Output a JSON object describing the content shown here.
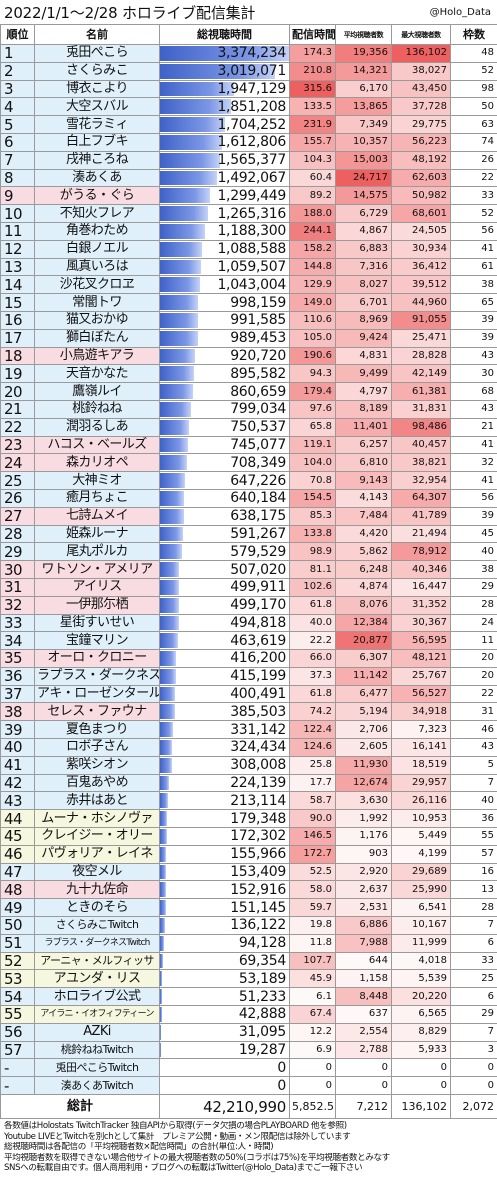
{
  "header": {
    "title": "2022/1/1～2/28 ホロライブ配信集計",
    "handle": "@Holo_Data"
  },
  "columns": {
    "rank": "順位",
    "name": "名前",
    "watch": "総視聴時間",
    "hours": "配信時間",
    "avg": "平均視聴者数",
    "max": "最大視聴者数",
    "frames": "枠数"
  },
  "colors": {
    "watch_bar": "#3f62c8",
    "hours_red": "#f06060",
    "viewers_red": "#f06060",
    "row_blue": "#dff0fb",
    "row_pink": "#f9dce2",
    "row_yellow": "#f6f7df"
  },
  "rows": [
    {
      "rank": "1",
      "name": "兎田ぺこら",
      "watch": "3,374,234",
      "watch_v": 3374234,
      "hours": "174.3",
      "hours_v": 174.3,
      "avg": "19,356",
      "avg_v": 19356,
      "max": "136,102",
      "max_v": 136102,
      "frames": "48",
      "bg": "b"
    },
    {
      "rank": "2",
      "name": "さくらみこ",
      "watch": "3,019,071",
      "watch_v": 3019071,
      "hours": "210.8",
      "hours_v": 210.8,
      "avg": "14,321",
      "avg_v": 14321,
      "max": "38,027",
      "max_v": 38027,
      "frames": "52",
      "bg": "b"
    },
    {
      "rank": "3",
      "name": "博衣こより",
      "watch": "1,947,129",
      "watch_v": 1947129,
      "hours": "315.6",
      "hours_v": 315.6,
      "avg": "6,170",
      "avg_v": 6170,
      "max": "43,450",
      "max_v": 43450,
      "frames": "98",
      "bg": "b"
    },
    {
      "rank": "4",
      "name": "大空スバル",
      "watch": "1,851,208",
      "watch_v": 1851208,
      "hours": "133.5",
      "hours_v": 133.5,
      "avg": "13,865",
      "avg_v": 13865,
      "max": "37,728",
      "max_v": 37728,
      "frames": "50",
      "bg": "b"
    },
    {
      "rank": "5",
      "name": "雪花ラミィ",
      "watch": "1,704,252",
      "watch_v": 1704252,
      "hours": "231.9",
      "hours_v": 231.9,
      "avg": "7,349",
      "avg_v": 7349,
      "max": "29,775",
      "max_v": 29775,
      "frames": "63",
      "bg": "b"
    },
    {
      "rank": "6",
      "name": "白上フブキ",
      "watch": "1,612,806",
      "watch_v": 1612806,
      "hours": "155.7",
      "hours_v": 155.7,
      "avg": "10,357",
      "avg_v": 10357,
      "max": "56,223",
      "max_v": 56223,
      "frames": "74",
      "bg": "b"
    },
    {
      "rank": "7",
      "name": "戌神ころね",
      "watch": "1,565,377",
      "watch_v": 1565377,
      "hours": "104.3",
      "hours_v": 104.3,
      "avg": "15,003",
      "avg_v": 15003,
      "max": "48,192",
      "max_v": 48192,
      "frames": "26",
      "bg": "b"
    },
    {
      "rank": "8",
      "name": "湊あくあ",
      "watch": "1,492,067",
      "watch_v": 1492067,
      "hours": "60.4",
      "hours_v": 60.4,
      "avg": "24,717",
      "avg_v": 24717,
      "max": "62,603",
      "max_v": 62603,
      "frames": "22",
      "bg": "b"
    },
    {
      "rank": "9",
      "name": "がうる・ぐら",
      "watch": "1,299,449",
      "watch_v": 1299449,
      "hours": "89.2",
      "hours_v": 89.2,
      "avg": "14,575",
      "avg_v": 14575,
      "max": "50,982",
      "max_v": 50982,
      "frames": "33",
      "bg": "hl"
    },
    {
      "rank": "10",
      "name": "不知火フレア",
      "watch": "1,265,316",
      "watch_v": 1265316,
      "hours": "188.0",
      "hours_v": 188.0,
      "avg": "6,729",
      "avg_v": 6729,
      "max": "68,601",
      "max_v": 68601,
      "frames": "52",
      "bg": "b"
    },
    {
      "rank": "11",
      "name": "角巻わため",
      "watch": "1,188,300",
      "watch_v": 1188300,
      "hours": "244.1",
      "hours_v": 244.1,
      "avg": "4,867",
      "avg_v": 4867,
      "max": "24,505",
      "max_v": 24505,
      "frames": "56",
      "bg": "b"
    },
    {
      "rank": "12",
      "name": "白銀ノエル",
      "watch": "1,088,588",
      "watch_v": 1088588,
      "hours": "158.2",
      "hours_v": 158.2,
      "avg": "6,883",
      "avg_v": 6883,
      "max": "30,934",
      "max_v": 30934,
      "frames": "41",
      "bg": "b"
    },
    {
      "rank": "13",
      "name": "風真いろは",
      "watch": "1,059,507",
      "watch_v": 1059507,
      "hours": "144.8",
      "hours_v": 144.8,
      "avg": "7,316",
      "avg_v": 7316,
      "max": "36,412",
      "max_v": 36412,
      "frames": "61",
      "bg": "b"
    },
    {
      "rank": "14",
      "name": "沙花叉クロヱ",
      "watch": "1,043,004",
      "watch_v": 1043004,
      "hours": "129.9",
      "hours_v": 129.9,
      "avg": "8,027",
      "avg_v": 8027,
      "max": "39,512",
      "max_v": 39512,
      "frames": "38",
      "bg": "b"
    },
    {
      "rank": "15",
      "name": "常闇トワ",
      "watch": "998,159",
      "watch_v": 998159,
      "hours": "149.0",
      "hours_v": 149.0,
      "avg": "6,701",
      "avg_v": 6701,
      "max": "44,960",
      "max_v": 44960,
      "frames": "65",
      "bg": "b"
    },
    {
      "rank": "16",
      "name": "猫又おかゆ",
      "watch": "991,585",
      "watch_v": 991585,
      "hours": "110.6",
      "hours_v": 110.6,
      "avg": "8,969",
      "avg_v": 8969,
      "max": "91,055",
      "max_v": 91055,
      "frames": "39",
      "bg": "b"
    },
    {
      "rank": "17",
      "name": "獅白ぼたん",
      "watch": "989,453",
      "watch_v": 989453,
      "hours": "105.0",
      "hours_v": 105.0,
      "avg": "9,424",
      "avg_v": 9424,
      "max": "25,471",
      "max_v": 25471,
      "frames": "39",
      "bg": "b"
    },
    {
      "rank": "18",
      "name": "小鳥遊キアラ",
      "watch": "920,720",
      "watch_v": 920720,
      "hours": "190.6",
      "hours_v": 190.6,
      "avg": "4,831",
      "avg_v": 4831,
      "max": "28,828",
      "max_v": 28828,
      "frames": "43",
      "bg": "hl"
    },
    {
      "rank": "19",
      "name": "天音かなた",
      "watch": "895,582",
      "watch_v": 895582,
      "hours": "94.3",
      "hours_v": 94.3,
      "avg": "9,499",
      "avg_v": 9499,
      "max": "42,149",
      "max_v": 42149,
      "frames": "30",
      "bg": "b"
    },
    {
      "rank": "20",
      "name": "鷹嶺ルイ",
      "watch": "860,659",
      "watch_v": 860659,
      "hours": "179.4",
      "hours_v": 179.4,
      "avg": "4,797",
      "avg_v": 4797,
      "max": "61,381",
      "max_v": 61381,
      "frames": "68",
      "bg": "b"
    },
    {
      "rank": "21",
      "name": "桃鈴ねね",
      "watch": "799,034",
      "watch_v": 799034,
      "hours": "97.6",
      "hours_v": 97.6,
      "avg": "8,189",
      "avg_v": 8189,
      "max": "31,831",
      "max_v": 31831,
      "frames": "43",
      "bg": "b"
    },
    {
      "rank": "22",
      "name": "潤羽るしあ",
      "watch": "750,537",
      "watch_v": 750537,
      "hours": "65.8",
      "hours_v": 65.8,
      "avg": "11,401",
      "avg_v": 11401,
      "max": "98,486",
      "max_v": 98486,
      "frames": "21",
      "bg": "b"
    },
    {
      "rank": "23",
      "name": "ハコス・ベールズ",
      "watch": "745,077",
      "watch_v": 745077,
      "hours": "119.1",
      "hours_v": 119.1,
      "avg": "6,257",
      "avg_v": 6257,
      "max": "40,457",
      "max_v": 40457,
      "frames": "41",
      "bg": "hl"
    },
    {
      "rank": "24",
      "name": "森カリオペ",
      "watch": "708,349",
      "watch_v": 708349,
      "hours": "104.0",
      "hours_v": 104.0,
      "avg": "6,810",
      "avg_v": 6810,
      "max": "38,821",
      "max_v": 38821,
      "frames": "32",
      "bg": "hl"
    },
    {
      "rank": "25",
      "name": "大神ミオ",
      "watch": "647,226",
      "watch_v": 647226,
      "hours": "70.8",
      "hours_v": 70.8,
      "avg": "9,143",
      "avg_v": 9143,
      "max": "32,954",
      "max_v": 32954,
      "frames": "41",
      "bg": "b"
    },
    {
      "rank": "26",
      "name": "癒月ちょこ",
      "watch": "640,184",
      "watch_v": 640184,
      "hours": "154.5",
      "hours_v": 154.5,
      "avg": "4,143",
      "avg_v": 4143,
      "max": "64,307",
      "max_v": 64307,
      "frames": "56",
      "bg": "b"
    },
    {
      "rank": "27",
      "name": "七詩ムメイ",
      "watch": "638,175",
      "watch_v": 638175,
      "hours": "85.3",
      "hours_v": 85.3,
      "avg": "7,484",
      "avg_v": 7484,
      "max": "41,789",
      "max_v": 41789,
      "frames": "39",
      "bg": "hl"
    },
    {
      "rank": "28",
      "name": "姫森ルーナ",
      "watch": "591,267",
      "watch_v": 591267,
      "hours": "133.8",
      "hours_v": 133.8,
      "avg": "4,420",
      "avg_v": 4420,
      "max": "21,494",
      "max_v": 21494,
      "frames": "45",
      "bg": "b"
    },
    {
      "rank": "29",
      "name": "尾丸ポルカ",
      "watch": "579,529",
      "watch_v": 579529,
      "hours": "98.9",
      "hours_v": 98.9,
      "avg": "5,862",
      "avg_v": 5862,
      "max": "78,912",
      "max_v": 78912,
      "frames": "40",
      "bg": "b"
    },
    {
      "rank": "30",
      "name": "ワトソン・アメリア",
      "watch": "507,020",
      "watch_v": 507020,
      "hours": "81.1",
      "hours_v": 81.1,
      "avg": "6,248",
      "avg_v": 6248,
      "max": "40,346",
      "max_v": 40346,
      "frames": "38",
      "bg": "hl"
    },
    {
      "rank": "31",
      "name": "アイリス",
      "watch": "499,911",
      "watch_v": 499911,
      "hours": "102.6",
      "hours_v": 102.6,
      "avg": "4,874",
      "avg_v": 4874,
      "max": "16,447",
      "max_v": 16447,
      "frames": "29",
      "bg": "hl"
    },
    {
      "rank": "32",
      "name": "一伊那尓栖",
      "watch": "499,170",
      "watch_v": 499170,
      "hours": "61.8",
      "hours_v": 61.8,
      "avg": "8,076",
      "avg_v": 8076,
      "max": "31,352",
      "max_v": 31352,
      "frames": "28",
      "bg": "hl"
    },
    {
      "rank": "33",
      "name": "星街すいせい",
      "watch": "494,818",
      "watch_v": 494818,
      "hours": "40.0",
      "hours_v": 40.0,
      "avg": "12,384",
      "avg_v": 12384,
      "max": "30,367",
      "max_v": 30367,
      "frames": "24",
      "bg": "b"
    },
    {
      "rank": "34",
      "name": "宝鐘マリン",
      "watch": "463,619",
      "watch_v": 463619,
      "hours": "22.2",
      "hours_v": 22.2,
      "avg": "20,877",
      "avg_v": 20877,
      "max": "56,595",
      "max_v": 56595,
      "frames": "11",
      "bg": "b"
    },
    {
      "rank": "35",
      "name": "オーロ・クロニー",
      "watch": "416,200",
      "watch_v": 416200,
      "hours": "66.0",
      "hours_v": 66.0,
      "avg": "6,307",
      "avg_v": 6307,
      "max": "48,121",
      "max_v": 48121,
      "frames": "20",
      "bg": "hl"
    },
    {
      "rank": "36",
      "name": "ラプラス・ダークネス",
      "watch": "415,199",
      "watch_v": 415199,
      "hours": "37.3",
      "hours_v": 37.3,
      "avg": "11,142",
      "avg_v": 11142,
      "max": "25,767",
      "max_v": 25767,
      "frames": "20",
      "bg": "b"
    },
    {
      "rank": "37",
      "name": "アキ・ローゼンタール",
      "watch": "400,491",
      "watch_v": 400491,
      "hours": "61.8",
      "hours_v": 61.8,
      "avg": "6,477",
      "avg_v": 6477,
      "max": "56,527",
      "max_v": 56527,
      "frames": "22",
      "bg": "b"
    },
    {
      "rank": "38",
      "name": "セレス・ファウナ",
      "watch": "385,503",
      "watch_v": 385503,
      "hours": "74.2",
      "hours_v": 74.2,
      "avg": "5,194",
      "avg_v": 5194,
      "max": "34,918",
      "max_v": 34918,
      "frames": "31",
      "bg": "hl"
    },
    {
      "rank": "39",
      "name": "夏色まつり",
      "watch": "331,142",
      "watch_v": 331142,
      "hours": "122.4",
      "hours_v": 122.4,
      "avg": "2,706",
      "avg_v": 2706,
      "max": "7,323",
      "max_v": 7323,
      "frames": "46",
      "bg": "b"
    },
    {
      "rank": "40",
      "name": "ロボ子さん",
      "watch": "324,434",
      "watch_v": 324434,
      "hours": "124.6",
      "hours_v": 124.6,
      "avg": "2,605",
      "avg_v": 2605,
      "max": "16,141",
      "max_v": 16141,
      "frames": "43",
      "bg": "b"
    },
    {
      "rank": "41",
      "name": "紫咲シオン",
      "watch": "308,008",
      "watch_v": 308008,
      "hours": "25.8",
      "hours_v": 25.8,
      "avg": "11,930",
      "avg_v": 11930,
      "max": "18,519",
      "max_v": 18519,
      "frames": "5",
      "bg": "b"
    },
    {
      "rank": "42",
      "name": "百鬼あやめ",
      "watch": "224,139",
      "watch_v": 224139,
      "hours": "17.7",
      "hours_v": 17.7,
      "avg": "12,674",
      "avg_v": 12674,
      "max": "29,957",
      "max_v": 29957,
      "frames": "7",
      "bg": "b"
    },
    {
      "rank": "43",
      "name": "赤井はあと",
      "watch": "213,114",
      "watch_v": 213114,
      "hours": "58.7",
      "hours_v": 58.7,
      "avg": "3,630",
      "avg_v": 3630,
      "max": "26,116",
      "max_v": 26116,
      "frames": "40",
      "bg": "b"
    },
    {
      "rank": "44",
      "name": "ムーナ・ホシノヴァ",
      "watch": "179,348",
      "watch_v": 179348,
      "hours": "90.0",
      "hours_v": 90.0,
      "avg": "1,992",
      "avg_v": 1992,
      "max": "10,953",
      "max_v": 10953,
      "frames": "36",
      "bg": "y"
    },
    {
      "rank": "45",
      "name": "クレイジー・オリー",
      "watch": "172,302",
      "watch_v": 172302,
      "hours": "146.5",
      "hours_v": 146.5,
      "avg": "1,176",
      "avg_v": 1176,
      "max": "5,449",
      "max_v": 5449,
      "frames": "55",
      "bg": "y"
    },
    {
      "rank": "46",
      "name": "パヴォリア・レイネ",
      "watch": "155,966",
      "watch_v": 155966,
      "hours": "172.7",
      "hours_v": 172.7,
      "avg": "903",
      "avg_v": 903,
      "max": "4,199",
      "max_v": 4199,
      "frames": "57",
      "bg": "y"
    },
    {
      "rank": "47",
      "name": "夜空メル",
      "watch": "153,409",
      "watch_v": 153409,
      "hours": "52.5",
      "hours_v": 52.5,
      "avg": "2,920",
      "avg_v": 2920,
      "max": "29,689",
      "max_v": 29689,
      "frames": "16",
      "bg": "b"
    },
    {
      "rank": "48",
      "name": "九十九佐命",
      "watch": "152,916",
      "watch_v": 152916,
      "hours": "58.0",
      "hours_v": 58.0,
      "avg": "2,637",
      "avg_v": 2637,
      "max": "25,990",
      "max_v": 25990,
      "frames": "13",
      "bg": "hl"
    },
    {
      "rank": "49",
      "name": "ときのそら",
      "watch": "151,145",
      "watch_v": 151145,
      "hours": "59.7",
      "hours_v": 59.7,
      "avg": "2,531",
      "avg_v": 2531,
      "max": "6,541",
      "max_v": 6541,
      "frames": "28",
      "bg": "b"
    },
    {
      "rank": "50",
      "name": "さくらみこTwitch",
      "watch": "136,122",
      "watch_v": 136122,
      "hours": "19.8",
      "hours_v": 19.8,
      "avg": "6,886",
      "avg_v": 6886,
      "max": "10,167",
      "max_v": 10167,
      "frames": "7",
      "bg": "b",
      "sz": "sn"
    },
    {
      "rank": "51",
      "name": "ラプラス・ダークネスTwitch",
      "watch": "94,128",
      "watch_v": 94128,
      "hours": "11.8",
      "hours_v": 11.8,
      "avg": "7,988",
      "avg_v": 7988,
      "max": "11,999",
      "max_v": 11999,
      "frames": "6",
      "bg": "b",
      "sz": "xs"
    },
    {
      "rank": "52",
      "name": "アーニャ・メルフィッサ",
      "watch": "69,354",
      "watch_v": 69354,
      "hours": "107.7",
      "hours_v": 107.7,
      "avg": "644",
      "avg_v": 644,
      "max": "4,018",
      "max_v": 4018,
      "frames": "33",
      "bg": "y",
      "sz": "sn"
    },
    {
      "rank": "53",
      "name": "アユンダ・リス",
      "watch": "53,189",
      "watch_v": 53189,
      "hours": "45.9",
      "hours_v": 45.9,
      "avg": "1,158",
      "avg_v": 1158,
      "max": "5,539",
      "max_v": 5539,
      "frames": "25",
      "bg": "y"
    },
    {
      "rank": "54",
      "name": "ホロライブ公式",
      "watch": "51,233",
      "watch_v": 51233,
      "hours": "6.1",
      "hours_v": 6.1,
      "avg": "8,448",
      "avg_v": 8448,
      "max": "20,220",
      "max_v": 20220,
      "frames": "6",
      "bg": "b"
    },
    {
      "rank": "55",
      "name": "アイラニ・イオフィフティーン",
      "watch": "42,888",
      "watch_v": 42888,
      "hours": "67.4",
      "hours_v": 67.4,
      "avg": "637",
      "avg_v": 637,
      "max": "6,565",
      "max_v": 6565,
      "frames": "29",
      "bg": "y",
      "sz": "xs"
    },
    {
      "rank": "56",
      "name": "AZKi",
      "watch": "31,095",
      "watch_v": 31095,
      "hours": "12.2",
      "hours_v": 12.2,
      "avg": "2,554",
      "avg_v": 2554,
      "max": "8,829",
      "max_v": 8829,
      "frames": "7",
      "bg": "b"
    },
    {
      "rank": "57",
      "name": "桃鈴ねねTwitch",
      "watch": "19,287",
      "watch_v": 19287,
      "hours": "6.9",
      "hours_v": 6.9,
      "avg": "2,788",
      "avg_v": 2788,
      "max": "5,933",
      "max_v": 5933,
      "frames": "3",
      "bg": "b",
      "sz": "sn"
    },
    {
      "rank": "-",
      "name": "兎田ぺこらTwitch",
      "watch": "0",
      "watch_v": 0,
      "hours": "0",
      "hours_v": 0,
      "avg": "0",
      "avg_v": 0,
      "max": "0",
      "max_v": 0,
      "frames": "0",
      "bg": "b",
      "sz": "sn"
    },
    {
      "rank": "-",
      "name": "湊あくあTwitch",
      "watch": "0",
      "watch_v": 0,
      "hours": "0",
      "hours_v": 0,
      "avg": "0",
      "avg_v": 0,
      "max": "0",
      "max_v": 0,
      "frames": "0",
      "bg": "b",
      "sz": "sn"
    }
  ],
  "total": {
    "label": "総計",
    "watch": "42,210,990",
    "hours": "5,852.5",
    "avg": "7,212",
    "max": "136,102",
    "frames": "2,072"
  },
  "notes": [
    "各数値はHolostats TwitchTracker 独自APIから取得(データ欠損の場合PLAYBOARD 他を参照)",
    "Youtube LIVEとTwitchを別chとして集計　プレミア公開・動画・メン限配信は除外しています",
    "総視聴時間は各配信の「平均視聴者数×配信時間」の合計(単位:人・時間)",
    "平均視聴者数を取得できない場合他サイトの最大視聴者数の50%(コラボは75%)を平均視聴者数とみなす",
    "SNSへの転載自由です。個人商用利用・ブログへの転載はTwitter(@Holo_Data)までご一報下さい"
  ]
}
